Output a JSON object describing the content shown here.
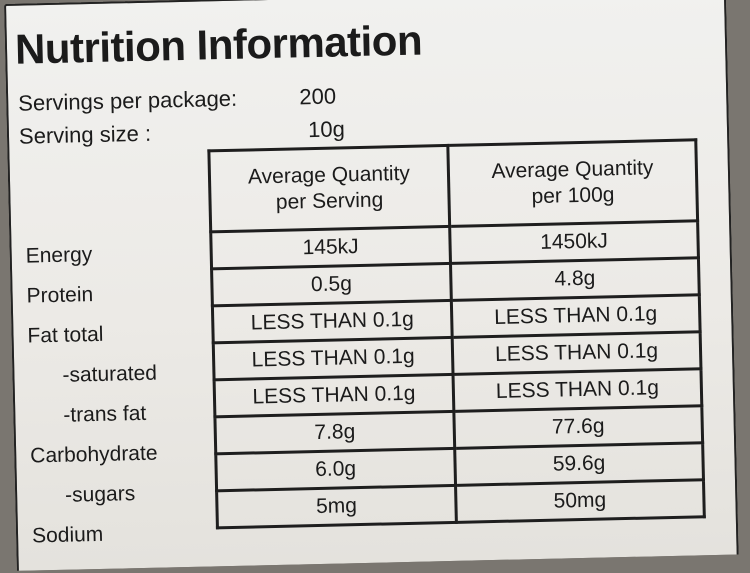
{
  "title": "Nutrition Information",
  "servings_per_package": {
    "label": "Servings per package:",
    "value": "200"
  },
  "serving_size": {
    "label": "Serving size :",
    "value": "10g"
  },
  "table": {
    "headers": {
      "per_serving_line1": "Average Quantity",
      "per_serving_line2": "per Serving",
      "per_100g_line1": "Average Quantity",
      "per_100g_line2": "per 100g"
    },
    "rows": [
      {
        "label": "Energy",
        "per_serving": "145kJ",
        "per_100g": "1450kJ"
      },
      {
        "label": "Protein",
        "per_serving": "0.5g",
        "per_100g": "4.8g"
      },
      {
        "label": "Fat total",
        "per_serving": "LESS THAN 0.1g",
        "per_100g": "LESS THAN 0.1g"
      },
      {
        "label": "-saturated",
        "per_serving": "LESS THAN 0.1g",
        "per_100g": "LESS THAN 0.1g"
      },
      {
        "label": "-trans fat",
        "per_serving": "LESS THAN 0.1g",
        "per_100g": "LESS THAN 0.1g"
      },
      {
        "label": "Carbohydrate",
        "per_serving": "7.8g",
        "per_100g": "77.6g"
      },
      {
        "label": "-sugars",
        "per_serving": "6.0g",
        "per_100g": "59.6g"
      },
      {
        "label": "Sodium",
        "per_serving": "5mg",
        "per_100g": "50mg"
      }
    ]
  }
}
